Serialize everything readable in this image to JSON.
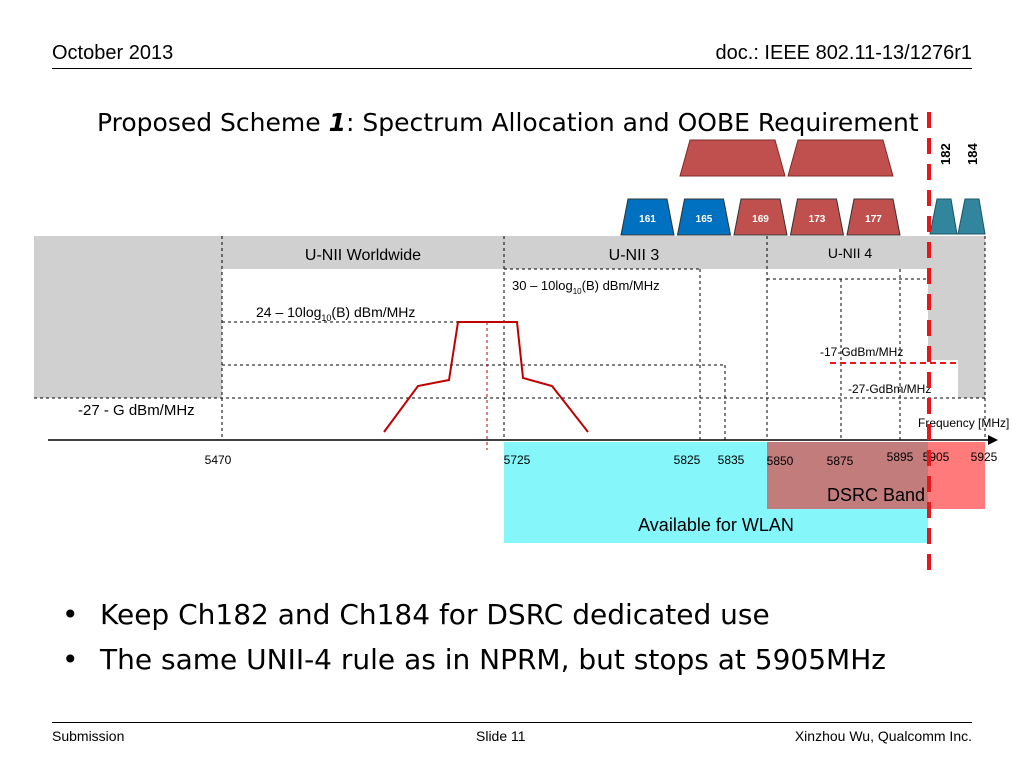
{
  "header": {
    "date": "October 2013",
    "doc": "doc.: IEEE 802.11-13/1276r1"
  },
  "title": {
    "prefix": "Proposed Scheme ",
    "number": "1",
    "suffix": ": Spectrum Allocation and OOBE Requirement"
  },
  "bands": {
    "worldwide": "U-NII Worldwide",
    "unii3": "U-NII 3",
    "unii4": "U-NII 4"
  },
  "channels": [
    {
      "label": "161",
      "color": "#0070c0"
    },
    {
      "label": "165",
      "color": "#0070c0"
    },
    {
      "label": "169",
      "color": "#c0504d"
    },
    {
      "label": "173",
      "color": "#c0504d"
    },
    {
      "label": "177",
      "color": "#c0504d"
    }
  ],
  "dsrc_channels": {
    "ch182": "182",
    "ch184": "184"
  },
  "mask_labels": {
    "worldwide_pre": "24 – 10log",
    "worldwide_sub": "10",
    "worldwide_post": "(B) dBm/MHz",
    "unii3_pre": "30 – 10log",
    "unii3_sub": "10",
    "unii3_post": "(B) dBm/MHz",
    "minus17": "-17-GdBm/MHz",
    "minus27g": "-27-GdBm/MHz",
    "left_floor": "-27 - G dBm/MHz"
  },
  "axis": {
    "label": "Frequency [MHz]",
    "ticks": [
      "5470",
      "5725",
      "5825",
      "5835",
      "5850",
      "5875",
      "5895",
      "5905",
      "5925"
    ]
  },
  "regions": {
    "dsrc": "DSRC Band",
    "wlan": "Available for WLAN"
  },
  "colors": {
    "dsrc_band": "#c27c7c",
    "dsrc_pink": "#ff7b7b",
    "wlan": "#85f7fb",
    "gray": "#d0d0d0",
    "cutoff": "#e8171b",
    "teal": "#31859c"
  },
  "bullets": [
    "Keep Ch182 and Ch184 for DSRC dedicated use",
    "The same UNII-4 rule as in NPRM, but stops at 5905MHz"
  ],
  "footer": {
    "left": "Submission",
    "center": "Slide 11",
    "right": "Xinzhou Wu, Qualcomm Inc."
  }
}
